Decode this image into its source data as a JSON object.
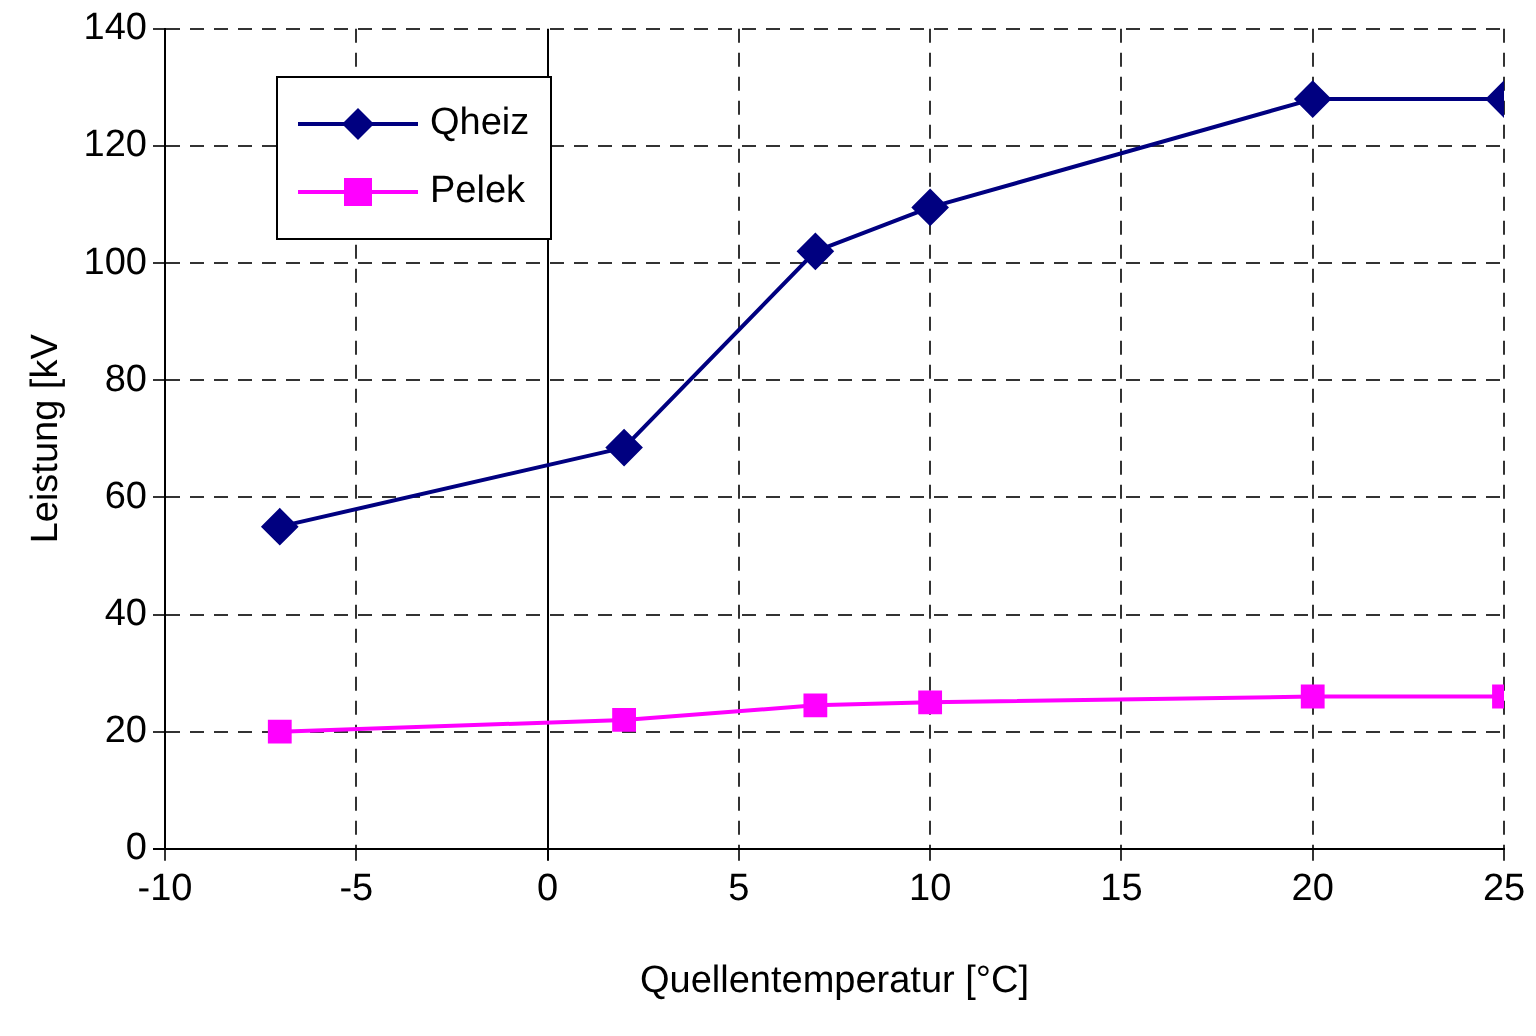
{
  "chart_data": {
    "type": "line",
    "xlabel": "Quellentemperatur [°C]",
    "ylabel": "Leistung [kV",
    "xlim": [
      -10,
      25
    ],
    "xticks": [
      -10,
      -5,
      0,
      5,
      10,
      15,
      20,
      25
    ],
    "ylim": [
      0,
      140
    ],
    "yticks": [
      0,
      20,
      40,
      60,
      80,
      100,
      120,
      140
    ],
    "grid": true,
    "legend": "top left",
    "line_style": "solid",
    "series": [
      {
        "name": "Qheiz",
        "color": "#000080",
        "marker": "diamond",
        "x": [
          -7,
          2,
          7,
          10,
          20,
          25
        ],
        "values": [
          55,
          68.5,
          102,
          109.5,
          128,
          128
        ]
      },
      {
        "name": "Pelek",
        "color": "#ff00ff",
        "marker": "square",
        "x": [
          -7,
          2,
          7,
          10,
          20,
          25
        ],
        "values": [
          20,
          22,
          24.5,
          25,
          26,
          26
        ]
      }
    ]
  }
}
